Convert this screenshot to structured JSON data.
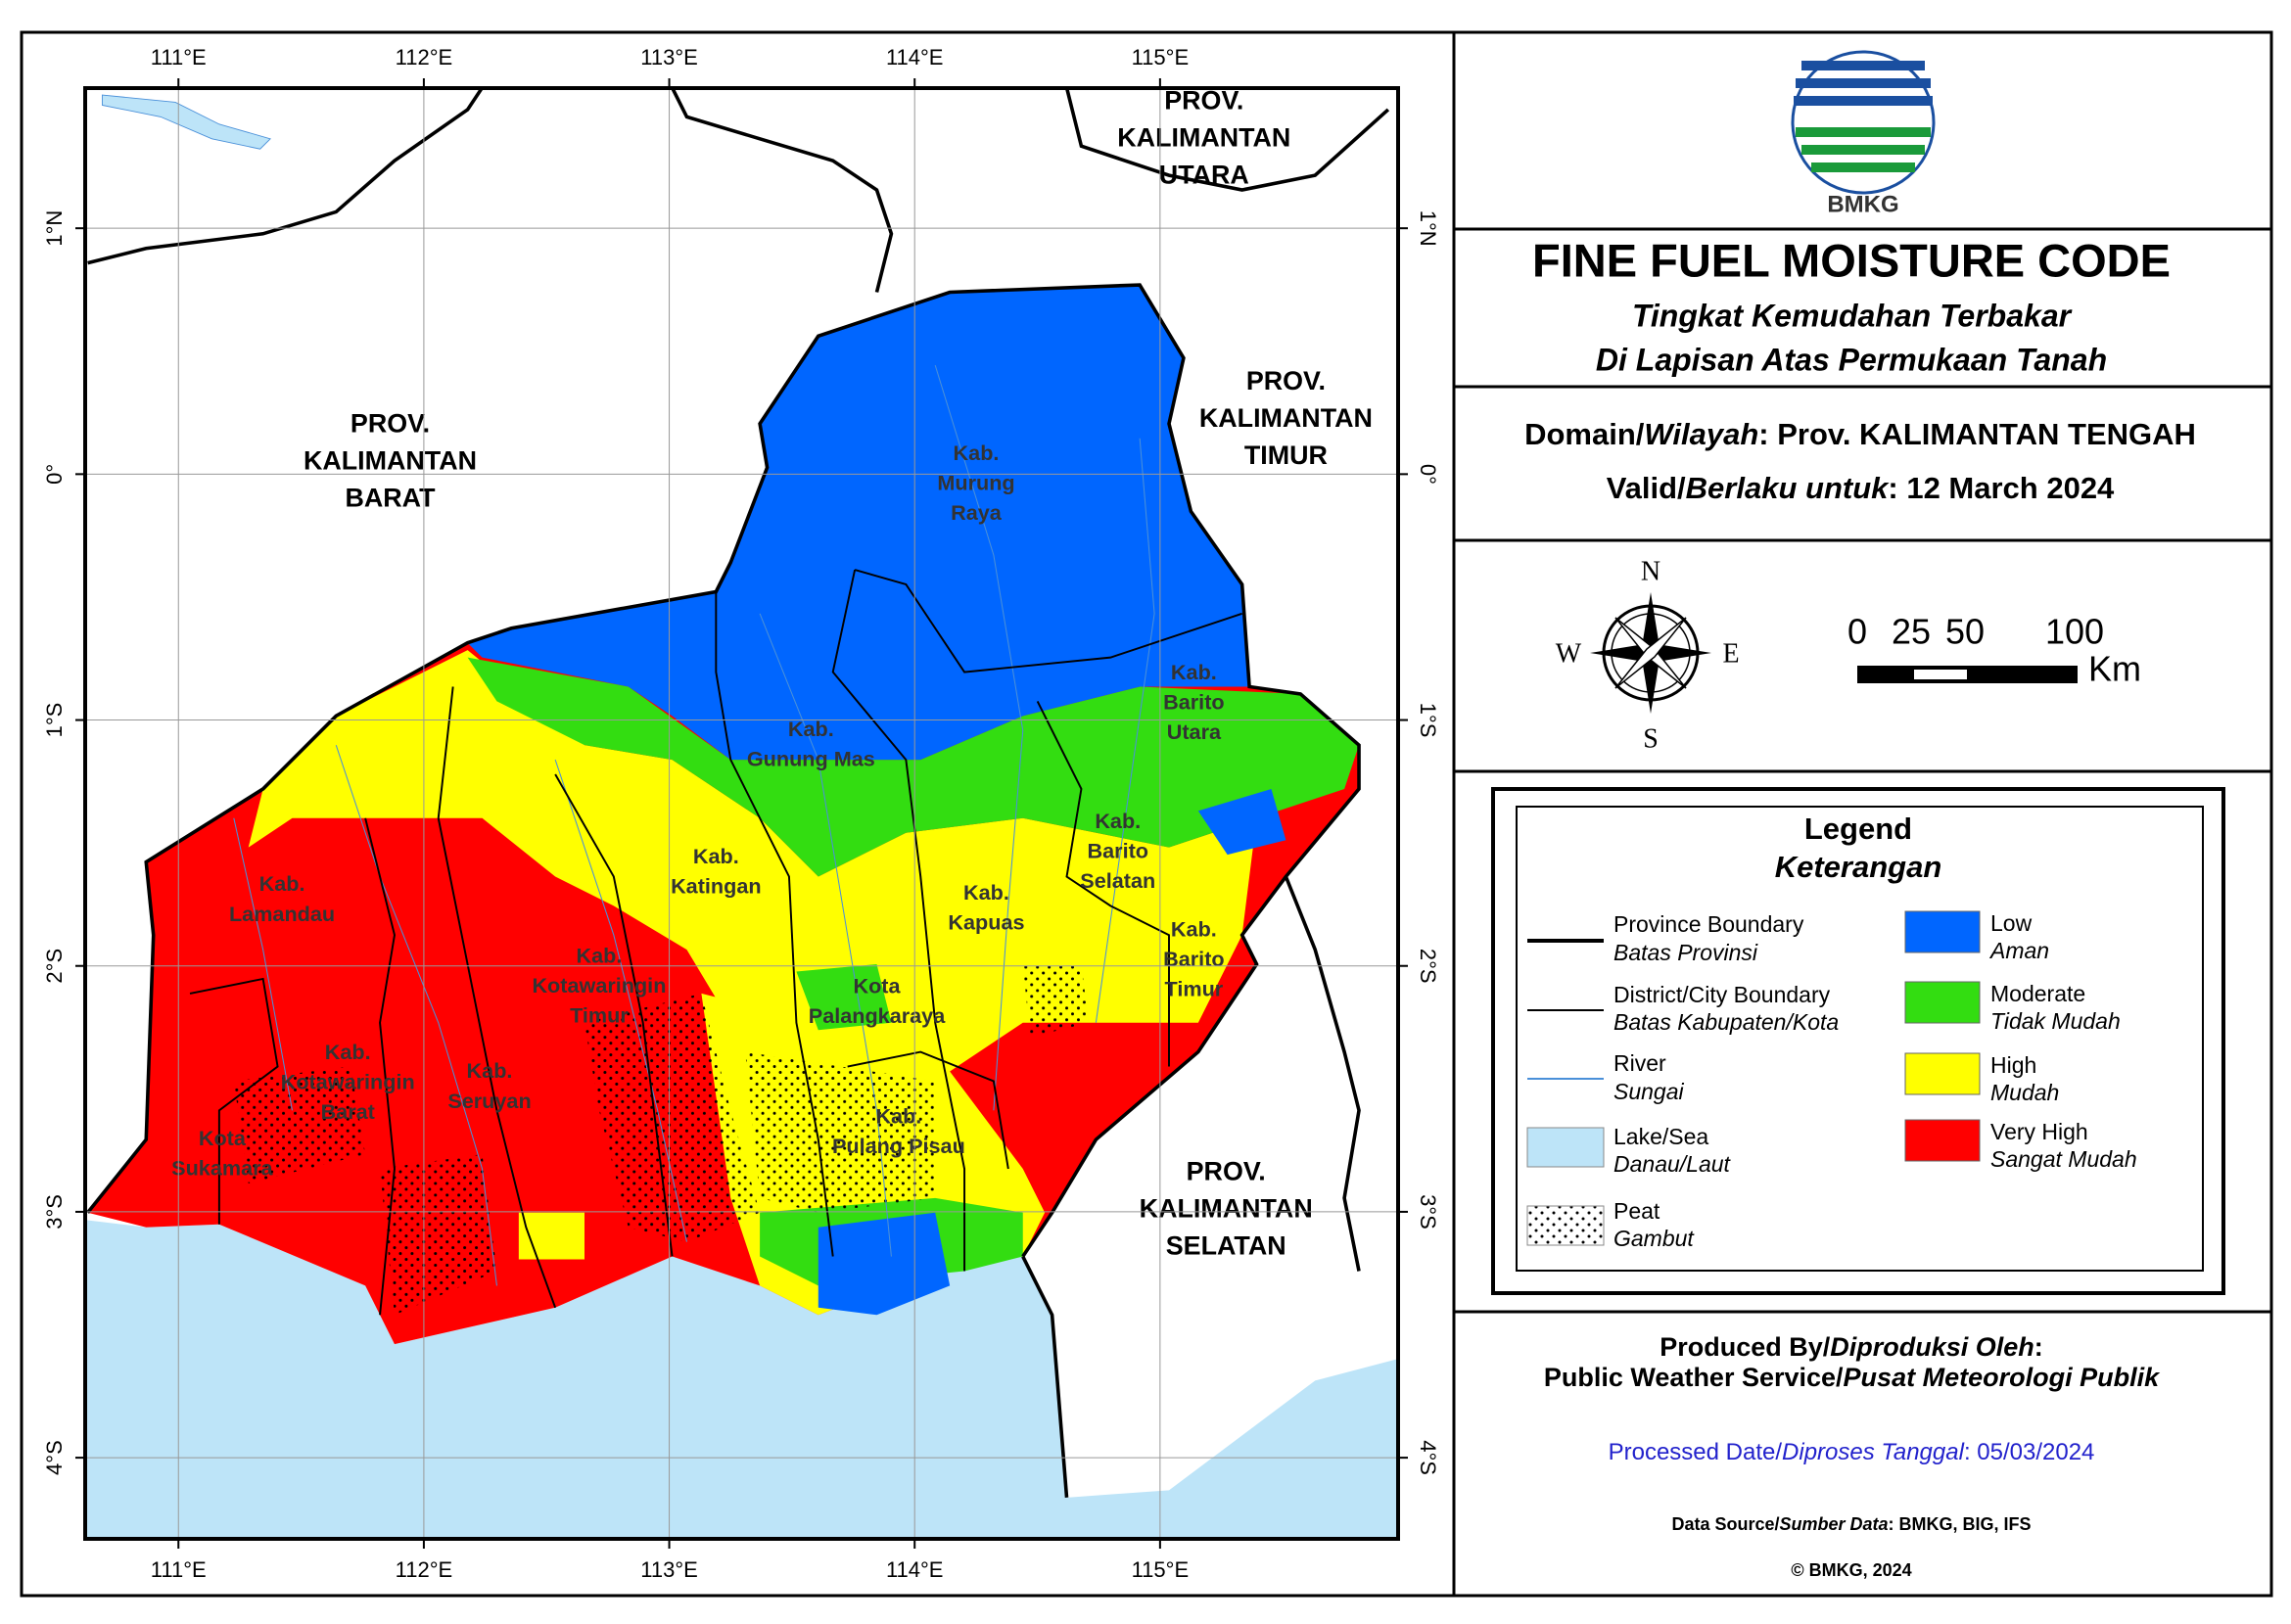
{
  "map": {
    "xlim": [
      110.62,
      115.97
    ],
    "ylim": [
      -4.33,
      1.57
    ],
    "xticks": [
      {
        "value": 111,
        "label": "111°E"
      },
      {
        "value": 112,
        "label": "112°E"
      },
      {
        "value": 113,
        "label": "113°E"
      },
      {
        "value": 114,
        "label": "114°E"
      },
      {
        "value": 115,
        "label": "115°E"
      }
    ],
    "yticks": [
      {
        "value": 1,
        "label": "1°N"
      },
      {
        "value": 0,
        "label": "0°"
      },
      {
        "value": -1,
        "label": "1°S"
      },
      {
        "value": -2,
        "label": "2°S"
      },
      {
        "value": -3,
        "label": "3°S"
      },
      {
        "value": -4,
        "label": "4°S"
      }
    ],
    "provinces": [
      {
        "lines": [
          "PROV.",
          "KALIMANTAN",
          "BARAT"
        ]
      },
      {
        "lines": [
          "PROV.",
          "KALIMANTAN",
          "TIMUR"
        ]
      },
      {
        "lines": [
          "PROV.",
          "KALIMANTAN",
          "SELATAN"
        ]
      },
      {
        "lines": [
          "PROV.",
          "KALIMANTAN",
          "UTARA"
        ]
      }
    ],
    "regions": [
      {
        "lines": [
          "Kab.",
          "Murung",
          "Raya"
        ]
      },
      {
        "lines": [
          "Kab.",
          "Gunung Mas"
        ]
      },
      {
        "lines": [
          "Kab.",
          "Barito",
          "Utara"
        ]
      },
      {
        "lines": [
          "Kab.",
          "Katingan"
        ]
      },
      {
        "lines": [
          "Kab.",
          "Barito",
          "Selatan"
        ]
      },
      {
        "lines": [
          "Kab.",
          "Kapuas"
        ]
      },
      {
        "lines": [
          "Kab.",
          "Barito",
          "Timur"
        ]
      },
      {
        "lines": [
          "Kab.",
          "Lamandau"
        ]
      },
      {
        "lines": [
          "Kab.",
          "Kotawaringin",
          "Timur"
        ]
      },
      {
        "lines": [
          "Kota",
          "Palangkaraya"
        ]
      },
      {
        "lines": [
          "Kab.",
          "Kotawaringin",
          "Barat"
        ]
      },
      {
        "lines": [
          "Kab.",
          "Seruyan"
        ]
      },
      {
        "lines": [
          "Kab.",
          "Pulang Pisau"
        ]
      },
      {
        "lines": [
          "Kota",
          "Sukamara"
        ]
      }
    ]
  },
  "panel": {
    "logo_text": "BMKG",
    "title": "FINE FUEL MOISTURE CODE",
    "subtitle": [
      "Tingkat Kemudahan Terbakar",
      "Di Lapisan Atas Permukaan Tanah"
    ],
    "domain": {
      "label": "Domain/",
      "label_local": "Wilayah",
      "value": ": Prov. KALIMANTAN TENGAH"
    },
    "valid": {
      "label": "Valid/",
      "label_local": "Berlaku untuk",
      "value": ": 12 March 2024"
    },
    "compass": [
      "N",
      "S",
      "W",
      "E"
    ],
    "scale": {
      "ticks": [
        "0",
        "25",
        "50",
        "100"
      ],
      "unit": "Km"
    },
    "legend": {
      "title": "Legend",
      "title_local": "Keterangan",
      "features": [
        {
          "name": "Province Boundary",
          "local": "Batas Provinsi"
        },
        {
          "name": "District/City Boundary",
          "local": "Batas Kabupaten/Kota"
        },
        {
          "name": "River",
          "local": "Sungai"
        },
        {
          "name": "Lake/Sea",
          "local": "Danau/Laut"
        },
        {
          "name": "Peat",
          "local": "Gambut"
        }
      ],
      "classes": [
        {
          "name": "Low",
          "local": "Aman",
          "color": "#0066ff"
        },
        {
          "name": "Moderate",
          "local": "Tidak Mudah",
          "color": "#33dd11"
        },
        {
          "name": "High",
          "local": "Mudah",
          "color": "#ffff00"
        },
        {
          "name": "Very High",
          "local": "Sangat Mudah",
          "color": "#ff0000"
        }
      ]
    },
    "produced": {
      "label": "Produced By/",
      "label_local": "Diproduksi Oleh",
      "colon": ":",
      "org": "Public Weather Service/",
      "org_local": "Pusat Meteorologi Publik"
    },
    "processed": {
      "label": "Processed Date/",
      "label_local": "Diproses Tanggal",
      "value": ": 05/03/2024"
    },
    "source": {
      "label": "Data Source/",
      "label_local": "Sumber Data",
      "value": ": BMKG, BIG, IFS"
    },
    "copyright": "© BMKG, 2024"
  }
}
